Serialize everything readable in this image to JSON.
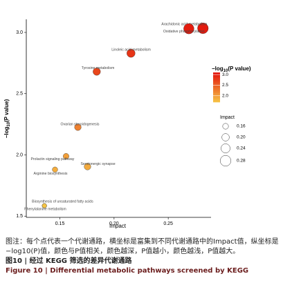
{
  "chart_data": {
    "type": "scatter",
    "x_label": "Impact",
    "y_label": [
      "−log",
      "10",
      "(P value)"
    ],
    "labels": [
      "Arachidonic acid metabolism",
      "Oxidative phosphorylation",
      "Linoleic acid metabolism",
      "Tyrosine metabolism",
      "Ovarian steroidogenesis",
      "Prolactin signaling pathway",
      "Serotonergic synapse",
      "Arginine biosynthesis",
      "Biosynthesis of unsaturated fatty acids",
      "Phenylalanine metabolism"
    ],
    "x": [
      0.282,
      0.269,
      0.2156,
      0.184,
      0.1666,
      0.1557,
      0.1755,
      0.1455,
      0.1357,
      0.1357
    ],
    "y": [
      3.034,
      3.03,
      2.83,
      2.68,
      2.226,
      1.989,
      1.904,
      1.88,
      1.585,
      1.585
    ],
    "sizes": [
      0.28,
      0.27,
      0.22,
      0.2,
      0.18,
      0.16,
      0.18,
      0.15,
      0.13,
      0.13
    ],
    "xlim": [
      0.119,
      0.2895
    ],
    "ylim": [
      1.49,
      3.107
    ],
    "xticks": [
      0.15,
      {
        "value": 0.2,
        "label": "0.20"
      },
      0.25
    ],
    "yticks": [
      1.5,
      {
        "value": 2.0,
        "label": "2.0"
      },
      2.5,
      {
        "value": 3.0,
        "label": "3.0"
      }
    ],
    "color_legend": {
      "title": [
        "−log",
        "10",
        "(P value)"
      ],
      "clim": [
        1.7,
        3.1
      ],
      "ticks": [
        {
          "value": 2.0,
          "label": "2.0"
        },
        2.5,
        {
          "value": 3.0,
          "label": "3.0"
        }
      ],
      "colors": [
        "#f6c445",
        "#e3120b"
      ]
    },
    "size_legend": {
      "title": "Impact",
      "values": [
        0.16,
        {
          "value": 0.2,
          "label": "0.20"
        },
        0.24,
        0.28
      ]
    }
  },
  "caption": {
    "note": "图注：每个点代表一个代谢通路，横坐标是富集到不同代谢通路中的Impact值，纵坐标是−log10(P)值，颜色与P值相关，颜色越深，P值越小，颜色越浅，P值越大。",
    "title_cn": "图10 | 经过 KEGG 筛选的差异代谢通路",
    "title_en": "Figure 10 | Differential metabolic pathways screened by KEGG"
  }
}
